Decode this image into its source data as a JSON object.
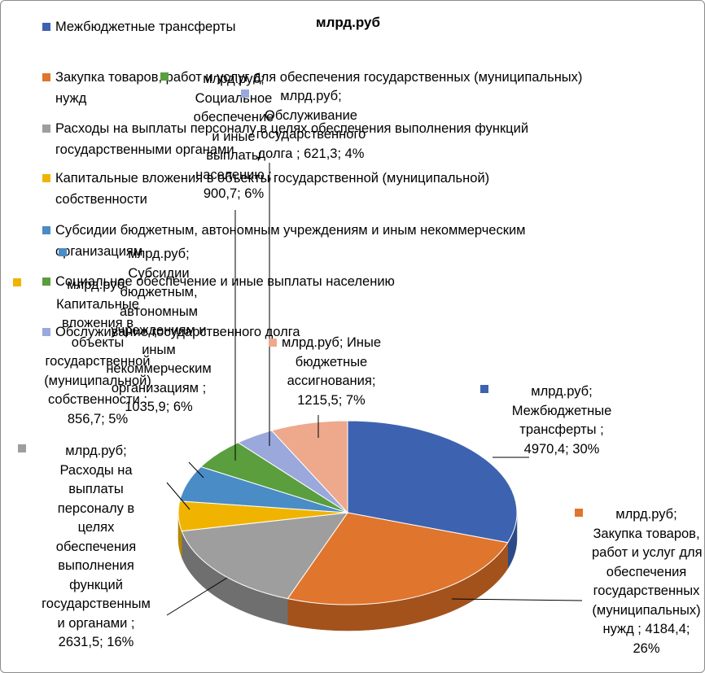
{
  "chart_data": {
    "type": "pie",
    "unit": "млрд.руб",
    "title": "млрд.руб",
    "legend_position": "top-left",
    "slices": [
      {
        "name": "Межбюджетные трансферты",
        "value": 4970.4,
        "percent": "30%",
        "color": "#3d63b0",
        "side_color": "#2c4a87",
        "label_lines": [
          "млрд.руб;",
          "Межбюджетные",
          "трансферты ;",
          "4970,4; 30%"
        ]
      },
      {
        "name": "Закупка товаров, работ и услуг для обеспечения государственных (муниципальных) нужд",
        "value": 4184.4,
        "percent": "26%",
        "color": "#e0752e",
        "side_color": "#a3521c",
        "label_lines": [
          "млрд.руб;",
          "Закупка товаров,",
          "работ и услуг для",
          "обеспечения",
          "государственных",
          "(муниципальных)",
          "нужд ; 4184,4;",
          "26%"
        ]
      },
      {
        "name": "Расходы на выплаты персоналу в целях обеспечения выполнения функций государственными органами",
        "value": 2631.5,
        "percent": "16%",
        "color": "#9e9e9e",
        "side_color": "#6f6f6f",
        "label_lines": [
          "млрд.руб;",
          "Расходы на",
          "выплаты",
          "персоналу в",
          "целях",
          "обеспечения",
          "выполнения",
          "функций",
          "государственным",
          "и органами ;",
          "2631,5; 16%"
        ]
      },
      {
        "name": "Капитальные вложения в объекты государственной (муниципальной) собственности",
        "value": 856.7,
        "percent": "5%",
        "color": "#f0b400",
        "side_color": "#b48700",
        "label_lines": [
          "млрд.руб;",
          "Капитальные",
          "вложения в",
          "объекты",
          "государственной",
          "(муниципальной)",
          "собственности ;",
          "856,7; 5%"
        ]
      },
      {
        "name": "Субсидии бюджетным, автономным учреждениям и иным некоммерческим организациям",
        "value": 1035.9,
        "percent": "6%",
        "color": "#4a8cc6",
        "side_color": "#336892",
        "label_lines": [
          "млрд.руб;",
          "Субсидии",
          "бюджетным,",
          "автономным",
          "учреждениям и",
          "иным",
          "некоммерческим",
          "организациям ;",
          "1035,9; 6%"
        ]
      },
      {
        "name": "Социальное обеспечение и иные выплаты населению",
        "value": 900.7,
        "percent": "6%",
        "color": "#5a9e3e",
        "side_color": "#3f722b",
        "label_lines": [
          "млрд.руб;",
          "Социальное",
          "обеспечение",
          "и иные",
          "выплаты",
          "населению ;",
          "900,7; 6%"
        ]
      },
      {
        "name": "Обслуживание государственного долга",
        "value": 621.3,
        "percent": "4%",
        "color": "#9aa8dc",
        "side_color": "#7180b0",
        "label_lines": [
          "млрд.руб;",
          "Обслуживание",
          "государственного",
          "долга ; 621,3; 4%"
        ]
      },
      {
        "name": "Иные бюджетные ассигнования",
        "value": 1215.5,
        "percent": "7%",
        "color": "#eea88c",
        "side_color": "#b67c64",
        "label_lines": [
          "млрд.руб; Иные",
          "бюджетные",
          "ассигнования;",
          "1215,5; 7%"
        ]
      }
    ],
    "legend": [
      {
        "lines": [
          "Межбюджетные трансферты"
        ],
        "color": "#3d63b0"
      },
      {
        "lines": [
          "Закупка товаров, работ и услуг для обеспечения государственных (муниципальных)",
          "нужд"
        ],
        "color": "#e0752e"
      },
      {
        "lines": [
          "Расходы на выплаты персоналу в целях обеспечения выполнения функций",
          "государственными органами"
        ],
        "color": "#9e9e9e"
      },
      {
        "lines": [
          "Капитальные вложения в объекты государственной (муниципальной)",
          "собственности"
        ],
        "color": "#f0b400"
      },
      {
        "lines": [
          "Субсидии бюджетным, автономным учреждениям и иным некоммерческим",
          "организациям"
        ],
        "color": "#4a8cc6"
      },
      {
        "lines": [
          "Социальное обеспечение и иные выплаты населению"
        ],
        "color": "#5a9e3e"
      },
      {
        "lines": [
          "Обслуживание государственного долга"
        ],
        "color": "#9aa8dc"
      }
    ]
  }
}
